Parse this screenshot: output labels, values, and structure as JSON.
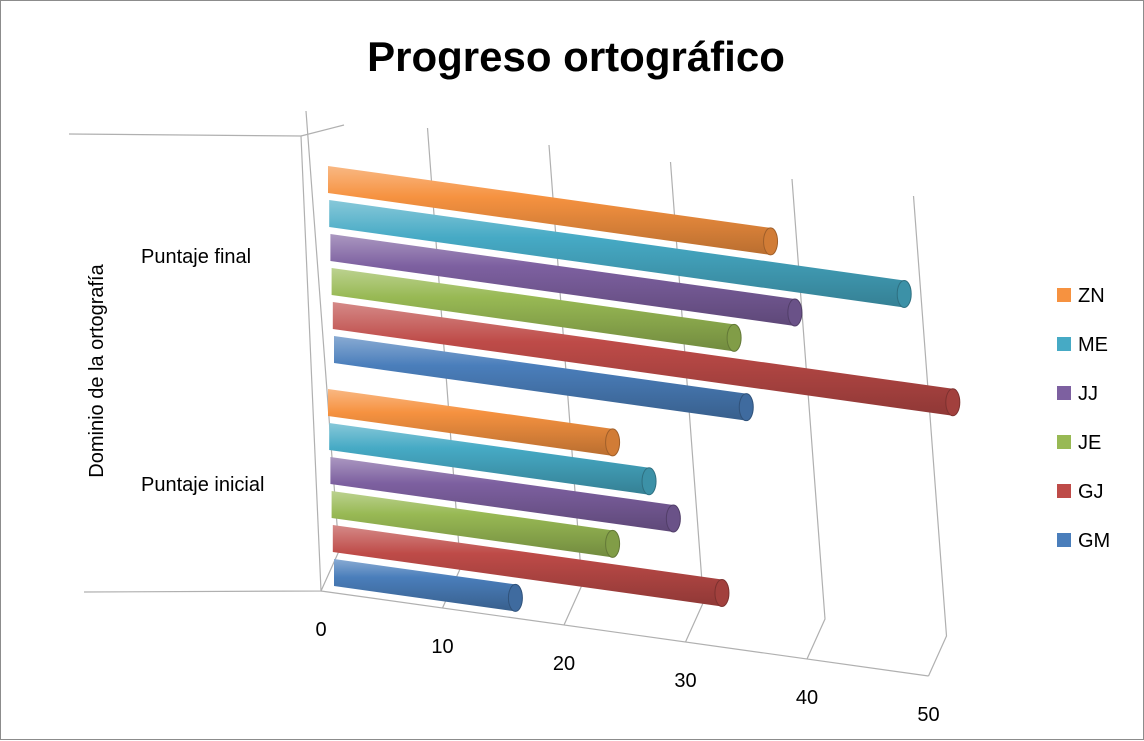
{
  "chart_data": {
    "type": "bar",
    "orientation": "horizontal",
    "style": "3d-cylinder",
    "title": "Progreso ortográfico",
    "ylabel": "Dominio de la ortografía",
    "xlabel": "",
    "categories": [
      "Puntaje inicial",
      "Puntaje final"
    ],
    "x_ticks": [
      "0",
      "10",
      "20",
      "30",
      "40",
      "50"
    ],
    "xlim": [
      0,
      50
    ],
    "grid": true,
    "legend_position": "right",
    "series": [
      {
        "name": "GM",
        "color": "#4a7ebb",
        "values": [
          16,
          35
        ]
      },
      {
        "name": "GJ",
        "color": "#be4b48",
        "values": [
          33,
          52
        ]
      },
      {
        "name": "JE",
        "color": "#98b954",
        "values": [
          24,
          34
        ]
      },
      {
        "name": "JJ",
        "color": "#7d60a0",
        "values": [
          29,
          39
        ]
      },
      {
        "name": "ME",
        "color": "#46aac5",
        "values": [
          27,
          48
        ]
      },
      {
        "name": "ZN",
        "color": "#f69240",
        "values": [
          24,
          37
        ]
      }
    ]
  }
}
